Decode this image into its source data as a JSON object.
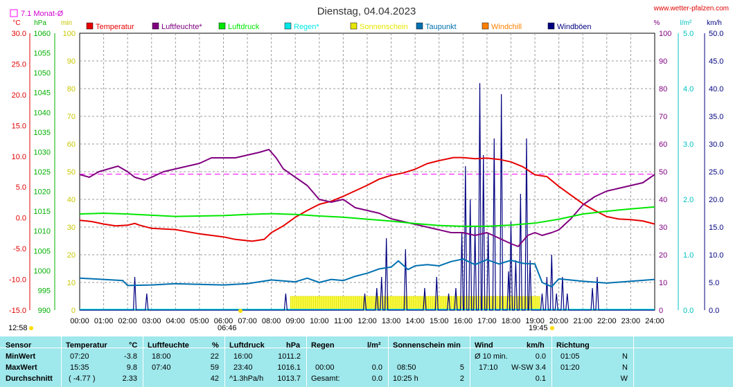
{
  "page": {
    "title": "Dienstag, 04.04.2023",
    "site": "www.wetter-pfalzen.com",
    "month_avg_label": "7.1 Monat-Ø",
    "sun_left_times": [
      "12:58",
      "06:46"
    ],
    "sun_right_time": "19:45"
  },
  "colors": {
    "temperature": "#e60000",
    "humidity": "#800080",
    "pressure": "#00e600",
    "rain": "#00e6e6",
    "sunshine": "#e6e600",
    "dewpoint": "#0070b0",
    "windchill": "#ff8000",
    "gust": "#000080",
    "month_avg": "#ff00ff",
    "stats_bg": "#9fe8ec"
  },
  "chart_data": {
    "type": "line",
    "title": "Dienstag, 04.04.2023",
    "legend": [
      {
        "name": "Temperatur",
        "color": "#e60000"
      },
      {
        "name": "Luftfeuchte*",
        "color": "#800080"
      },
      {
        "name": "Luftdruck",
        "color": "#00e600"
      },
      {
        "name": "Regen*",
        "color": "#00e6e6"
      },
      {
        "name": "Sonnenschein",
        "color": "#e6e600"
      },
      {
        "name": "Taupunkt",
        "color": "#0070b0"
      },
      {
        "name": "Windchill",
        "color": "#ff8000"
      },
      {
        "name": "Windböen",
        "color": "#000080"
      }
    ],
    "axes": {
      "temp": {
        "unit": "°C",
        "min": -15,
        "max": 30,
        "ticks": [
          "30.0",
          "25.0",
          "20.0",
          "15.0",
          "10.0",
          "5.0",
          "0.0",
          "-5.0",
          "-10.0",
          "-15.0"
        ]
      },
      "pressure": {
        "unit": "hPa",
        "min": 990,
        "max": 1060,
        "ticks": [
          "1060",
          "1055",
          "1050",
          "1045",
          "1040",
          "1035",
          "1030",
          "1025",
          "1020",
          "1015",
          "1010",
          "1005",
          "1000",
          "995",
          "990"
        ]
      },
      "sun": {
        "unit": "min",
        "min": 0,
        "max": 100,
        "ticks": [
          "100",
          "90",
          "80",
          "70",
          "60",
          "50",
          "40",
          "30",
          "20",
          "10",
          "0"
        ]
      },
      "humidity": {
        "unit": "%",
        "min": 0,
        "max": 100,
        "ticks": [
          "100",
          "90",
          "80",
          "70",
          "60",
          "50",
          "40",
          "30",
          "20",
          "10",
          "0"
        ]
      },
      "rain": {
        "unit": "l/m²",
        "min": 0,
        "max": 5,
        "ticks": [
          "5.0",
          "4.0",
          "3.0",
          "2.0",
          "1.0",
          "0.0"
        ]
      },
      "wind": {
        "unit": "km/h",
        "min": 0,
        "max": 50,
        "ticks": [
          "50.0",
          "45.0",
          "40.0",
          "35.0",
          "30.0",
          "25.0",
          "20.0",
          "15.0",
          "10.0",
          "5.0",
          "0.0"
        ]
      }
    },
    "x_ticks": [
      "00:00",
      "01:00",
      "02:00",
      "03:00",
      "04:00",
      "05:00",
      "06:00",
      "07:00",
      "08:00",
      "09:00",
      "10:00",
      "11:00",
      "12:00",
      "13:00",
      "14:00",
      "15:00",
      "16:00",
      "17:00",
      "18:00",
      "19:00",
      "20:00",
      "21:00",
      "22:00",
      "23:00",
      "24:00"
    ],
    "month_avg_temp": 7.1,
    "sunshine_interval": [
      8.8,
      19.2
    ],
    "series": [
      {
        "name": "Temperatur",
        "axis": "temp",
        "points": [
          [
            0,
            -0.4
          ],
          [
            0.5,
            -0.6
          ],
          [
            1,
            -1.0
          ],
          [
            1.5,
            -1.3
          ],
          [
            2,
            -1.2
          ],
          [
            2.3,
            -0.9
          ],
          [
            2.5,
            -1.2
          ],
          [
            3,
            -1.7
          ],
          [
            4,
            -1.9
          ],
          [
            5,
            -2.6
          ],
          [
            6,
            -3.1
          ],
          [
            6.5,
            -3.5
          ],
          [
            7.2,
            -3.8
          ],
          [
            7.7,
            -3.5
          ],
          [
            8,
            -2.4
          ],
          [
            8.5,
            -1.3
          ],
          [
            9,
            0.1
          ],
          [
            9.5,
            1.2
          ],
          [
            10,
            2.2
          ],
          [
            10.5,
            2.7
          ],
          [
            11,
            3.5
          ],
          [
            11.5,
            4.4
          ],
          [
            12,
            5.3
          ],
          [
            12.5,
            6.3
          ],
          [
            13,
            6.9
          ],
          [
            13.5,
            7.3
          ],
          [
            14,
            7.9
          ],
          [
            14.5,
            8.8
          ],
          [
            15,
            9.3
          ],
          [
            15.6,
            9.8
          ],
          [
            16,
            9.8
          ],
          [
            16.5,
            9.6
          ],
          [
            17,
            9.7
          ],
          [
            17.5,
            9.5
          ],
          [
            18,
            9.1
          ],
          [
            18.5,
            8.3
          ],
          [
            19,
            7.0
          ],
          [
            19.5,
            6.7
          ],
          [
            20,
            5.1
          ],
          [
            20.5,
            3.7
          ],
          [
            21,
            2.3
          ],
          [
            21.5,
            1.2
          ],
          [
            22,
            0.2
          ],
          [
            22.5,
            -0.2
          ],
          [
            23,
            -0.3
          ],
          [
            23.5,
            -0.5
          ],
          [
            24,
            -1.0
          ]
        ]
      },
      {
        "name": "Luftfeuchte*",
        "axis": "humidity",
        "points": [
          [
            0,
            49
          ],
          [
            0.4,
            48
          ],
          [
            0.8,
            50
          ],
          [
            1.2,
            51
          ],
          [
            1.6,
            52
          ],
          [
            2,
            50
          ],
          [
            2.3,
            48
          ],
          [
            2.7,
            47
          ],
          [
            3,
            48
          ],
          [
            3.5,
            50
          ],
          [
            4,
            51
          ],
          [
            4.5,
            52
          ],
          [
            5,
            53
          ],
          [
            5.5,
            55
          ],
          [
            6,
            55
          ],
          [
            6.5,
            55
          ],
          [
            7,
            56
          ],
          [
            7.5,
            57
          ],
          [
            7.9,
            58
          ],
          [
            8.2,
            55
          ],
          [
            8.5,
            51
          ],
          [
            9,
            48
          ],
          [
            9.5,
            45
          ],
          [
            10,
            40
          ],
          [
            10.5,
            39
          ],
          [
            11,
            40
          ],
          [
            11.5,
            37
          ],
          [
            12,
            36
          ],
          [
            12.5,
            35
          ],
          [
            13,
            33
          ],
          [
            13.5,
            32
          ],
          [
            14,
            31
          ],
          [
            14.5,
            30
          ],
          [
            15,
            29
          ],
          [
            15.5,
            28
          ],
          [
            16,
            28
          ],
          [
            16.5,
            27
          ],
          [
            17,
            28
          ],
          [
            17.5,
            26
          ],
          [
            18,
            24
          ],
          [
            18.3,
            23
          ],
          [
            18.7,
            27
          ],
          [
            19,
            28
          ],
          [
            19.3,
            27
          ],
          [
            19.7,
            28
          ],
          [
            20,
            29
          ],
          [
            20.5,
            33
          ],
          [
            21,
            38
          ],
          [
            21.5,
            41
          ],
          [
            22,
            43
          ],
          [
            22.5,
            44
          ],
          [
            23,
            45
          ],
          [
            23.5,
            46
          ],
          [
            24,
            49
          ]
        ]
      },
      {
        "name": "Luftdruck",
        "axis": "pressure",
        "points": [
          [
            0,
            1014.3
          ],
          [
            1,
            1014.5
          ],
          [
            2,
            1014.3
          ],
          [
            3,
            1014.0
          ],
          [
            4,
            1013.7
          ],
          [
            5,
            1013.8
          ],
          [
            6,
            1013.9
          ],
          [
            7,
            1014.2
          ],
          [
            8,
            1014.4
          ],
          [
            9,
            1014.2
          ],
          [
            10,
            1013.8
          ],
          [
            11,
            1013.5
          ],
          [
            12,
            1013.0
          ],
          [
            13,
            1012.5
          ],
          [
            14,
            1011.9
          ],
          [
            15,
            1011.4
          ],
          [
            16,
            1011.2
          ],
          [
            17,
            1011.2
          ],
          [
            18,
            1011.5
          ],
          [
            19,
            1012.0
          ],
          [
            20,
            1013.0
          ],
          [
            21,
            1014.3
          ],
          [
            22,
            1015.0
          ],
          [
            23,
            1015.6
          ],
          [
            24,
            1016.1
          ]
        ]
      },
      {
        "name": "Taupunkt",
        "axis": "temp",
        "points": [
          [
            0,
            -9.8
          ],
          [
            1,
            -10.0
          ],
          [
            1.8,
            -10.2
          ],
          [
            2,
            -11.0
          ],
          [
            3,
            -10.9
          ],
          [
            4,
            -10.7
          ],
          [
            5,
            -10.8
          ],
          [
            6,
            -10.9
          ],
          [
            7,
            -10.7
          ],
          [
            8,
            -10.1
          ],
          [
            9,
            -10.4
          ],
          [
            9.5,
            -9.8
          ],
          [
            10,
            -10.5
          ],
          [
            10.5,
            -10.0
          ],
          [
            11,
            -10.2
          ],
          [
            11.5,
            -9.5
          ],
          [
            12,
            -9.0
          ],
          [
            12.5,
            -8.3
          ],
          [
            13,
            -8.0
          ],
          [
            13.3,
            -7.0
          ],
          [
            13.7,
            -8.4
          ],
          [
            14,
            -7.8
          ],
          [
            14.5,
            -7.6
          ],
          [
            15,
            -7.8
          ],
          [
            15.5,
            -7.1
          ],
          [
            16,
            -6.7
          ],
          [
            16.5,
            -7.6
          ],
          [
            17,
            -6.8
          ],
          [
            17.5,
            -7.5
          ],
          [
            18,
            -6.9
          ],
          [
            18.5,
            -7.4
          ],
          [
            19,
            -7.5
          ],
          [
            19.3,
            -10.5
          ],
          [
            19.7,
            -11.2
          ],
          [
            20,
            -9.9
          ],
          [
            21,
            -10.3
          ],
          [
            22,
            -10.6
          ],
          [
            23,
            -10.3
          ],
          [
            24,
            -10.0
          ]
        ]
      }
    ],
    "gusts": [
      [
        2.3,
        6
      ],
      [
        2.8,
        3
      ],
      [
        8.6,
        3
      ],
      [
        11.9,
        3
      ],
      [
        12.4,
        4
      ],
      [
        12.6,
        6
      ],
      [
        12.8,
        13
      ],
      [
        13.6,
        11
      ],
      [
        14.4,
        4
      ],
      [
        14.9,
        6
      ],
      [
        15.4,
        3
      ],
      [
        15.7,
        4
      ],
      [
        15.95,
        14
      ],
      [
        16.1,
        26
      ],
      [
        16.3,
        20
      ],
      [
        16.5,
        15
      ],
      [
        16.7,
        41
      ],
      [
        16.85,
        28
      ],
      [
        17.05,
        14
      ],
      [
        17.3,
        31
      ],
      [
        17.6,
        39
      ],
      [
        17.9,
        7
      ],
      [
        18.0,
        16
      ],
      [
        18.2,
        9
      ],
      [
        18.4,
        21
      ],
      [
        18.65,
        31
      ],
      [
        18.8,
        9
      ],
      [
        19.3,
        3
      ],
      [
        19.5,
        6
      ],
      [
        19.7,
        10
      ],
      [
        19.9,
        3
      ],
      [
        20.15,
        6
      ],
      [
        20.35,
        3
      ],
      [
        21.4,
        4
      ],
      [
        21.6,
        6
      ]
    ]
  },
  "stats": {
    "headers": {
      "sensor": "Sensor",
      "temperature": "Temperatur",
      "temp_unit": "°C",
      "humidity": "Luftfeuchte",
      "humidity_unit": "%",
      "pressure": "Luftdruck",
      "pressure_unit": "hPa",
      "rain": "Regen",
      "rain_unit": "l/m²",
      "sunshine": "Sonnenschein min",
      "wind": "Wind",
      "wind_unit": "km/h",
      "direction": "Richtung"
    },
    "rows": [
      {
        "label": "MinWert",
        "temp_time": "07:20",
        "temp_val": "-3.8",
        "hum_time": "18:00",
        "hum_val": "22",
        "press_time": "16:00",
        "press_val": "1011.2",
        "rain_time": "",
        "rain_val": "",
        "sun_time": "",
        "sun_val": "",
        "wind_time": "Ø 10 min.",
        "wind_val": "0.0",
        "dir_time": "01:05",
        "dir_val": "N"
      },
      {
        "label": "MaxWert",
        "temp_time": "15:35",
        "temp_val": "9.8",
        "hum_time": "07:40",
        "hum_val": "59",
        "press_time": "23:40",
        "press_val": "1016.1",
        "rain_time": "00:00",
        "rain_val": "0.0",
        "sun_time": "08:50",
        "sun_val": "5",
        "wind_time": "17:10",
        "wind_val": "W-SW 3.4",
        "dir_time": "01:20",
        "dir_val": "N"
      },
      {
        "label": "Durchschnitt",
        "temp_time": "( -4.77 )",
        "temp_val": "2.33",
        "hum_time": "",
        "hum_val": "42",
        "press_time": "^1.3hPa/h",
        "press_val": "1013.7",
        "rain_time": "Gesamt:",
        "rain_val": "0.0",
        "sun_time": "10:25 h",
        "sun_val": "2",
        "wind_time": "",
        "wind_val": "0.1",
        "dir_time": "",
        "dir_val": "W"
      }
    ]
  }
}
